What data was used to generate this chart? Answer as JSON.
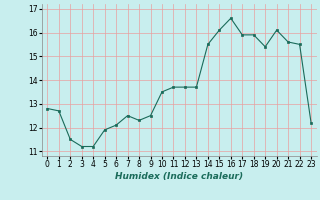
{
  "x": [
    0,
    1,
    2,
    3,
    4,
    5,
    6,
    7,
    8,
    9,
    10,
    11,
    12,
    13,
    14,
    15,
    16,
    17,
    18,
    19,
    20,
    21,
    22,
    23
  ],
  "y": [
    12.8,
    12.7,
    11.5,
    11.2,
    11.2,
    11.9,
    12.1,
    12.5,
    12.3,
    12.5,
    13.5,
    13.7,
    13.7,
    13.7,
    15.5,
    16.1,
    16.6,
    15.9,
    15.9,
    15.4,
    16.1,
    15.6,
    15.5,
    12.2
  ],
  "line_color": "#1a6b5a",
  "marker_color": "#1a6b5a",
  "bg_color": "#c8eeee",
  "grid_color": "#e8a0a0",
  "xlabel": "Humidex (Indice chaleur)",
  "xlim": [
    -0.5,
    23.5
  ],
  "ylim": [
    10.8,
    17.2
  ],
  "yticks": [
    11,
    12,
    13,
    14,
    15,
    16,
    17
  ],
  "xticks": [
    0,
    1,
    2,
    3,
    4,
    5,
    6,
    7,
    8,
    9,
    10,
    11,
    12,
    13,
    14,
    15,
    16,
    17,
    18,
    19,
    20,
    21,
    22,
    23
  ],
  "label_fontsize": 6.5,
  "tick_fontsize": 5.5
}
